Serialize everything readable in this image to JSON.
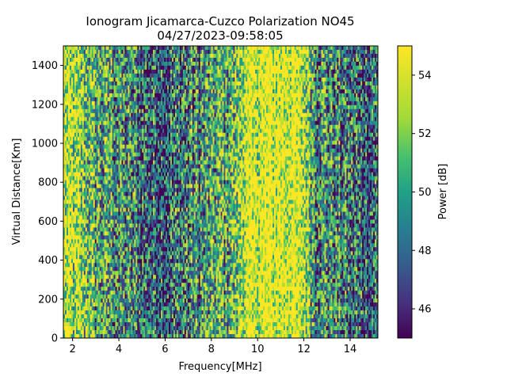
{
  "chart_data": {
    "type": "heatmap",
    "title_line1": "Ionogram Jicamarca-Cuzco Polarization NO45",
    "title_line2": "04/27/2023-09:58:05",
    "xlabel": "Frequency[MHz]",
    "ylabel": "Virtual Distance[Km]",
    "xlim": [
      1.6,
      15.2
    ],
    "ylim": [
      0,
      1500
    ],
    "x_ticks": [
      2,
      4,
      6,
      8,
      10,
      12,
      14
    ],
    "y_ticks": [
      0,
      200,
      400,
      600,
      800,
      1000,
      1200,
      1400
    ],
    "colorbar": {
      "label": "Power [dB]",
      "range": [
        45,
        55
      ],
      "ticks": [
        46,
        48,
        50,
        52,
        54
      ],
      "colormap": "viridis"
    },
    "power_profile_description_values": {
      "frequency_mhz": [
        1.6,
        2.5,
        3.0,
        4.0,
        5.0,
        6.0,
        7.0,
        8.0,
        9.0,
        9.4,
        10.0,
        10.5,
        11.5,
        12.0,
        12.5,
        13.0,
        13.5,
        14.0,
        14.5,
        15.2
      ],
      "mean_power_db": [
        53.5,
        52.0,
        50.5,
        49.5,
        48.5,
        48.0,
        49.0,
        50.0,
        51.0,
        54.0,
        54.5,
        55.0,
        55.0,
        53.5,
        50.0,
        49.5,
        49.0,
        48.5,
        48.0,
        48.5
      ]
    }
  }
}
